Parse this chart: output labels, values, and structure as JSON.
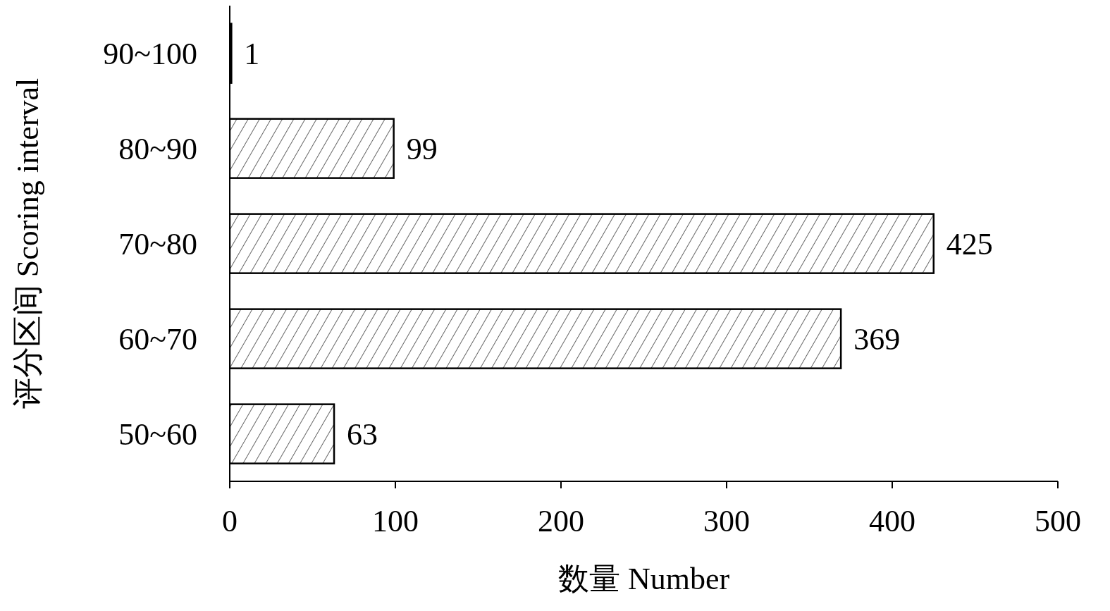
{
  "chart_data": {
    "type": "bar",
    "orientation": "horizontal",
    "xlabel": "数量 Number",
    "ylabel": "评分区间 Scoring interval",
    "categories": [
      "90~100",
      "80~90",
      "70~80",
      "60~70",
      "50~60"
    ],
    "values": [
      1,
      99,
      425,
      369,
      63
    ],
    "color": "#000000",
    "xlim": [
      0,
      500
    ],
    "xticks": [
      0,
      100,
      200,
      300,
      400,
      500
    ],
    "data_labels": true,
    "grid": false,
    "legend": false
  }
}
